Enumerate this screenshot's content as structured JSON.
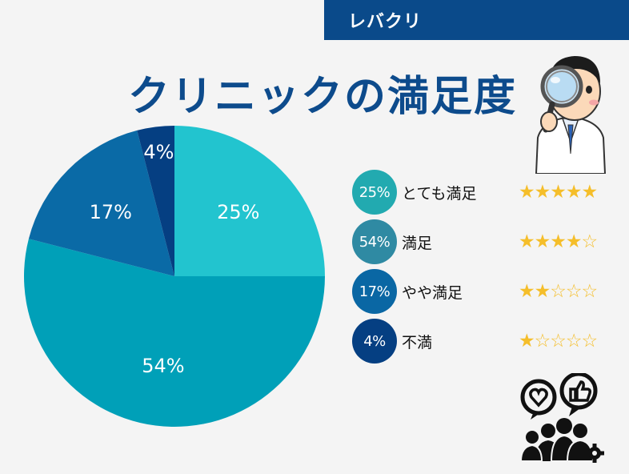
{
  "brand": {
    "label": "レバクリ"
  },
  "title": "クリニックの満足度",
  "chart_data": {
    "type": "pie",
    "title": "クリニックの満足度",
    "slices": [
      {
        "label": "とても満足",
        "value": 25,
        "display": "25%",
        "color": "#22c4cf",
        "stars": 5,
        "star_text": "★★★★★"
      },
      {
        "label": "満足",
        "value": 54,
        "display": "54%",
        "color": "#00a0b8",
        "stars": 4,
        "star_text": "★★★★☆"
      },
      {
        "label": "やや満足",
        "value": 17,
        "display": "17%",
        "color": "#0a6aa6",
        "stars": 2,
        "star_text": "★★☆☆☆"
      },
      {
        "label": "不満",
        "value": 4,
        "display": "4%",
        "color": "#053f82",
        "stars": 1,
        "star_text": "★☆☆☆☆"
      }
    ]
  },
  "legend_colors": [
    "#22aab0",
    "#2f8aa3",
    "#0a67a4",
    "#053f82"
  ],
  "icons": {
    "doctor": "doctor-magnifier-icon",
    "community": "community-feedback-icon"
  }
}
